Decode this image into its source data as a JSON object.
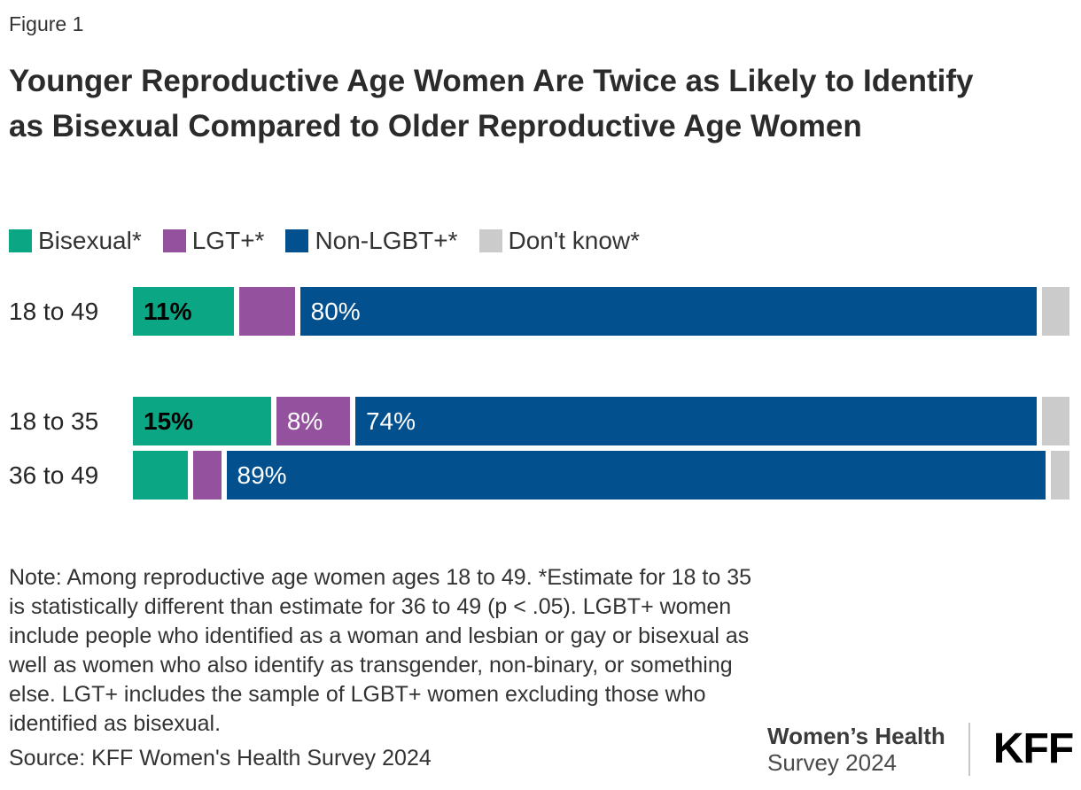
{
  "figure": {
    "label": "Figure 1",
    "title": "Younger Reproductive Age Women Are Twice as Likely to Identify as Bisexual Compared to Older Reproductive Age Women",
    "note": "Note: Among reproductive age women ages 18 to 49. *Estimate for 18 to 35 is statistically different than estimate for 36 to 49 (p < .05). LGBT+ women include people who identified as a woman and lesbian or gay or bisexual as well as women who also identify as transgender, non-binary, or something else. LGT+ includes the sample of LGBT+ women excluding those who identified as bisexual.",
    "source": "Source: KFF Women's Health Survey 2024"
  },
  "branding": {
    "line1": "Women’s Health",
    "line2": "Survey 2024",
    "logo": "KFF"
  },
  "chart_data": {
    "type": "bar",
    "variant": "horizontal-stacked",
    "title": "Younger Reproductive Age Women Are Twice as Likely to Identify as Bisexual Compared to Older Reproductive Age Women",
    "categories": [
      "18 to 49",
      "18 to 35",
      "36 to 49"
    ],
    "series": [
      {
        "name": "Bisexual*",
        "color": "#0BA784",
        "values": [
          11,
          15,
          6
        ]
      },
      {
        "name": "LGT+*",
        "color": "#93519E",
        "values": [
          6,
          8,
          3
        ]
      },
      {
        "name": "Non-LGBT+*",
        "color": "#03508E",
        "values": [
          80,
          74,
          89
        ]
      },
      {
        "name": "Don't know*",
        "color": "#CBCBCB",
        "values": [
          3,
          3,
          2
        ]
      }
    ],
    "bar_labels": [
      [
        "11%",
        "",
        "80%",
        ""
      ],
      [
        "15%",
        "8%",
        "74%",
        ""
      ],
      [
        "",
        "",
        "89%",
        ""
      ]
    ],
    "xlim": [
      0,
      100
    ],
    "grid": false,
    "legend_position": "top"
  }
}
